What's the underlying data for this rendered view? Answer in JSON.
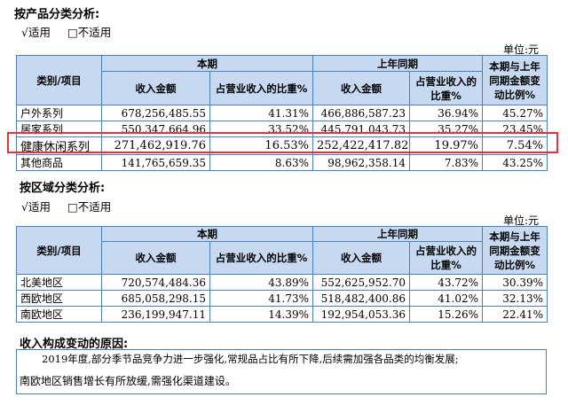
{
  "section1": {
    "title": "按产品分类分析:",
    "opt_yes": "√适用",
    "opt_no": "□不适用",
    "unit": "单位:元",
    "headers": {
      "category": "类别/项目",
      "current": "本期",
      "prior": "上年同期",
      "change": "本期与上年同期金额变动比例%",
      "amount": "收入金额",
      "ratio": "占营业收入的比重%"
    },
    "rows": [
      {
        "name": "户外系列",
        "cur_amount": "678,256,485.55",
        "cur_ratio": "41.31%",
        "prior_amount": "466,886,587.23",
        "prior_ratio": "36.94%",
        "change": "45.27%"
      },
      {
        "name": "居家系列",
        "cur_amount": "550,347,664.96",
        "cur_ratio": "33.52%",
        "prior_amount": "445,791,043.73",
        "prior_ratio": "35.27%",
        "change": "23.45%"
      },
      {
        "name": "健康休闲系列",
        "cur_amount": "271,462,919.76",
        "cur_ratio": "16.53%",
        "prior_amount": "252,422,417.82",
        "prior_ratio": "19.97%",
        "change": "7.54%"
      },
      {
        "name": "其他商品",
        "cur_amount": "141,765,659.35",
        "cur_ratio": "8.63%",
        "prior_amount": "98,962,358.14",
        "prior_ratio": "7.83%",
        "change": "43.25%"
      }
    ]
  },
  "section2": {
    "title": "按区域分类分析:",
    "opt_yes": "√适用",
    "opt_no": "□不适用",
    "unit": "单位:元",
    "headers": {
      "category": "类别/项目",
      "current": "本期",
      "prior": "上年同期",
      "change": "本期与上年同期金额变动比例%",
      "amount": "收入金额",
      "ratio": "占营业收入的比重%"
    },
    "rows": [
      {
        "name": "北美地区",
        "cur_amount": "720,574,484.36",
        "cur_ratio": "43.89%",
        "prior_amount": "552,625,952.70",
        "prior_ratio": "43.72%",
        "change": "30.39%"
      },
      {
        "name": "西欧地区",
        "cur_amount": "685,058,298.15",
        "cur_ratio": "41.73%",
        "prior_amount": "518,482,400.86",
        "prior_ratio": "41.02%",
        "change": "32.13%"
      },
      {
        "name": "南欧地区",
        "cur_amount": "236,199,947.11",
        "cur_ratio": "14.39%",
        "prior_amount": "192,954,053.36",
        "prior_ratio": "15.26%",
        "change": "22.41%"
      }
    ]
  },
  "reason": {
    "title": "收入构成变动的原因:",
    "line1": "2019年度,部分季节品竞争力进一步强化,常规品占比有所下降,后续需加强各品类的均衡发展;",
    "line2": "南欧地区销售增长有所放缓,需强化渠道建设。"
  },
  "colors": {
    "header_bg": "#c6d9f1",
    "border": "#4a7fc0",
    "highlight": "#e8303a"
  }
}
